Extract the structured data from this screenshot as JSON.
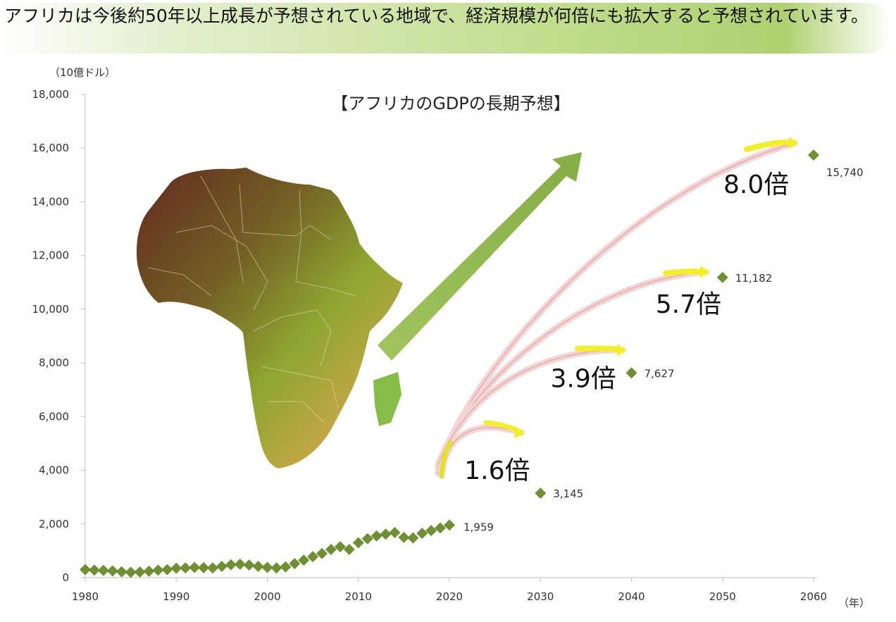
{
  "headline": "アフリカは今後約50年以上成長が予想されている地域で、経済規模が何倍にも拡大すると予想されています。",
  "chart_data": {
    "type": "scatter",
    "title": "【アフリカのGDPの長期予想】",
    "ylabel": "（10億ドル）",
    "xlabel": "（年）",
    "xlim": [
      1980,
      2060
    ],
    "ylim": [
      0,
      18000
    ],
    "x_ticks": [
      "1980",
      "1990",
      "2000",
      "2010",
      "2020",
      "2030",
      "2040",
      "2050",
      "2060"
    ],
    "y_ticks": [
      "0",
      "2,000",
      "4,000",
      "6,000",
      "8,000",
      "10,000",
      "12,000",
      "14,000",
      "16,000",
      "18,000"
    ],
    "marker_color": "#6f8f33",
    "history": {
      "x": [
        1980,
        1981,
        1982,
        1983,
        1984,
        1985,
        1986,
        1987,
        1988,
        1989,
        1990,
        1991,
        1992,
        1993,
        1994,
        1995,
        1996,
        1997,
        1998,
        1999,
        2000,
        2001,
        2002,
        2003,
        2004,
        2005,
        2006,
        2007,
        2008,
        2009,
        2010,
        2011,
        2012,
        2013,
        2014,
        2015,
        2016,
        2017,
        2018,
        2019,
        2020
      ],
      "y": [
        300,
        280,
        270,
        250,
        220,
        200,
        210,
        240,
        280,
        300,
        350,
        360,
        380,
        370,
        360,
        420,
        480,
        500,
        470,
        420,
        380,
        360,
        400,
        520,
        650,
        780,
        900,
        1050,
        1150,
        1050,
        1300,
        1450,
        1550,
        1620,
        1680,
        1500,
        1480,
        1650,
        1750,
        1850,
        1959
      ]
    },
    "projections": [
      {
        "x": 2030,
        "y": 3145,
        "label": "3,145",
        "multiplier": "1.6倍"
      },
      {
        "x": 2040,
        "y": 7627,
        "label": "7,627",
        "multiplier": "3.9倍"
      },
      {
        "x": 2050,
        "y": 11182,
        "label": "11,182",
        "multiplier": "5.7倍"
      },
      {
        "x": 2060,
        "y": 15740,
        "label": "15,740",
        "multiplier": "8.0倍"
      }
    ],
    "last_actual_label": "1,959"
  }
}
